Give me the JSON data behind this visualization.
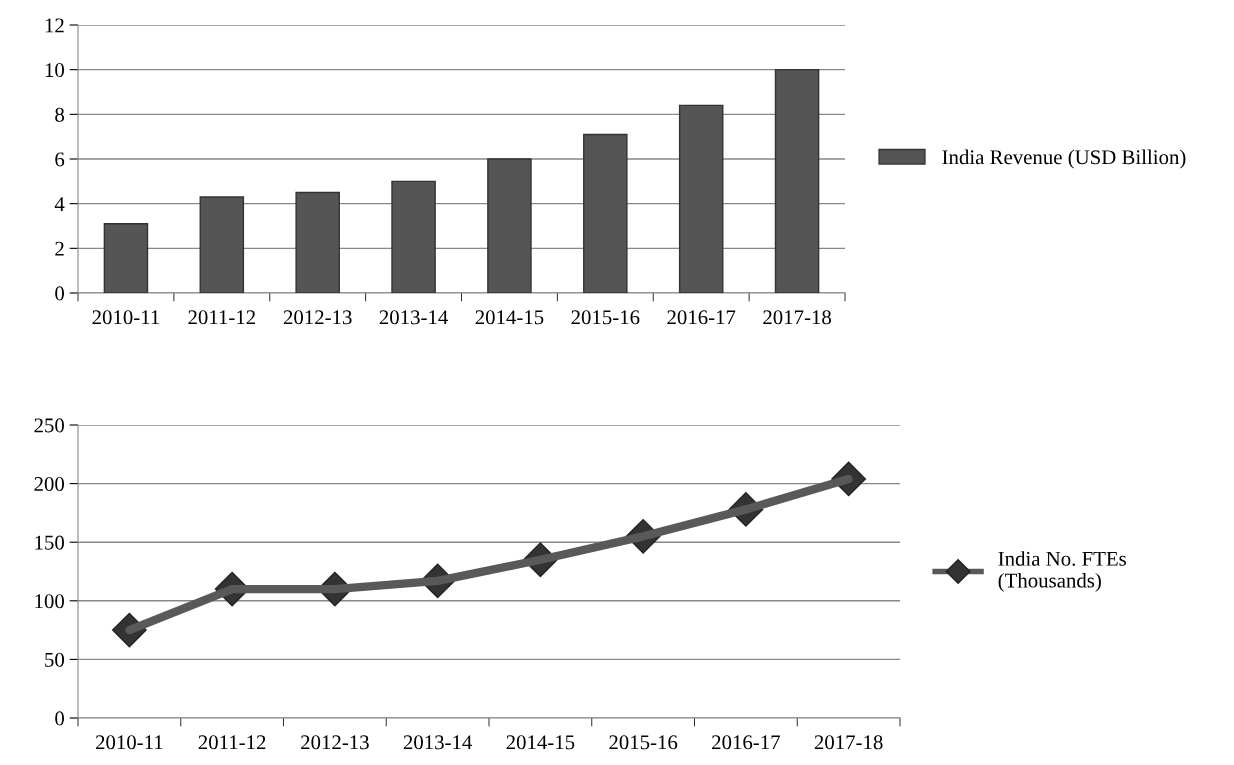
{
  "chart_data": [
    {
      "type": "bar",
      "categories": [
        "2010-11",
        "2011-12",
        "2012-13",
        "2013-14",
        "2014-15",
        "2015-16",
        "2016-17",
        "2017-18"
      ],
      "series": [
        {
          "name": "India Revenue (USD Billion)",
          "color": "#555555",
          "values": [
            3.1,
            4.3,
            4.5,
            5.0,
            6.0,
            7.1,
            8.4,
            10.0
          ]
        }
      ],
      "ylim": [
        0,
        12
      ],
      "yticks": [
        0,
        2,
        4,
        6,
        8,
        10,
        12
      ],
      "grid": "y",
      "legend": "right"
    },
    {
      "type": "line",
      "categories": [
        "2010-11",
        "2011-12",
        "2012-13",
        "2013-14",
        "2014-15",
        "2015-16",
        "2016-17",
        "2017-18"
      ],
      "series": [
        {
          "name": "India No. FTEs\n(Thousands)",
          "color": "#595959",
          "values": [
            75,
            110,
            110,
            117,
            135,
            155,
            178,
            204
          ]
        }
      ],
      "ylim": [
        0,
        250
      ],
      "yticks": [
        0,
        50,
        100,
        150,
        200,
        250
      ],
      "grid": "y",
      "legend": "right",
      "marker": "diamond",
      "line_style": "solid"
    }
  ]
}
